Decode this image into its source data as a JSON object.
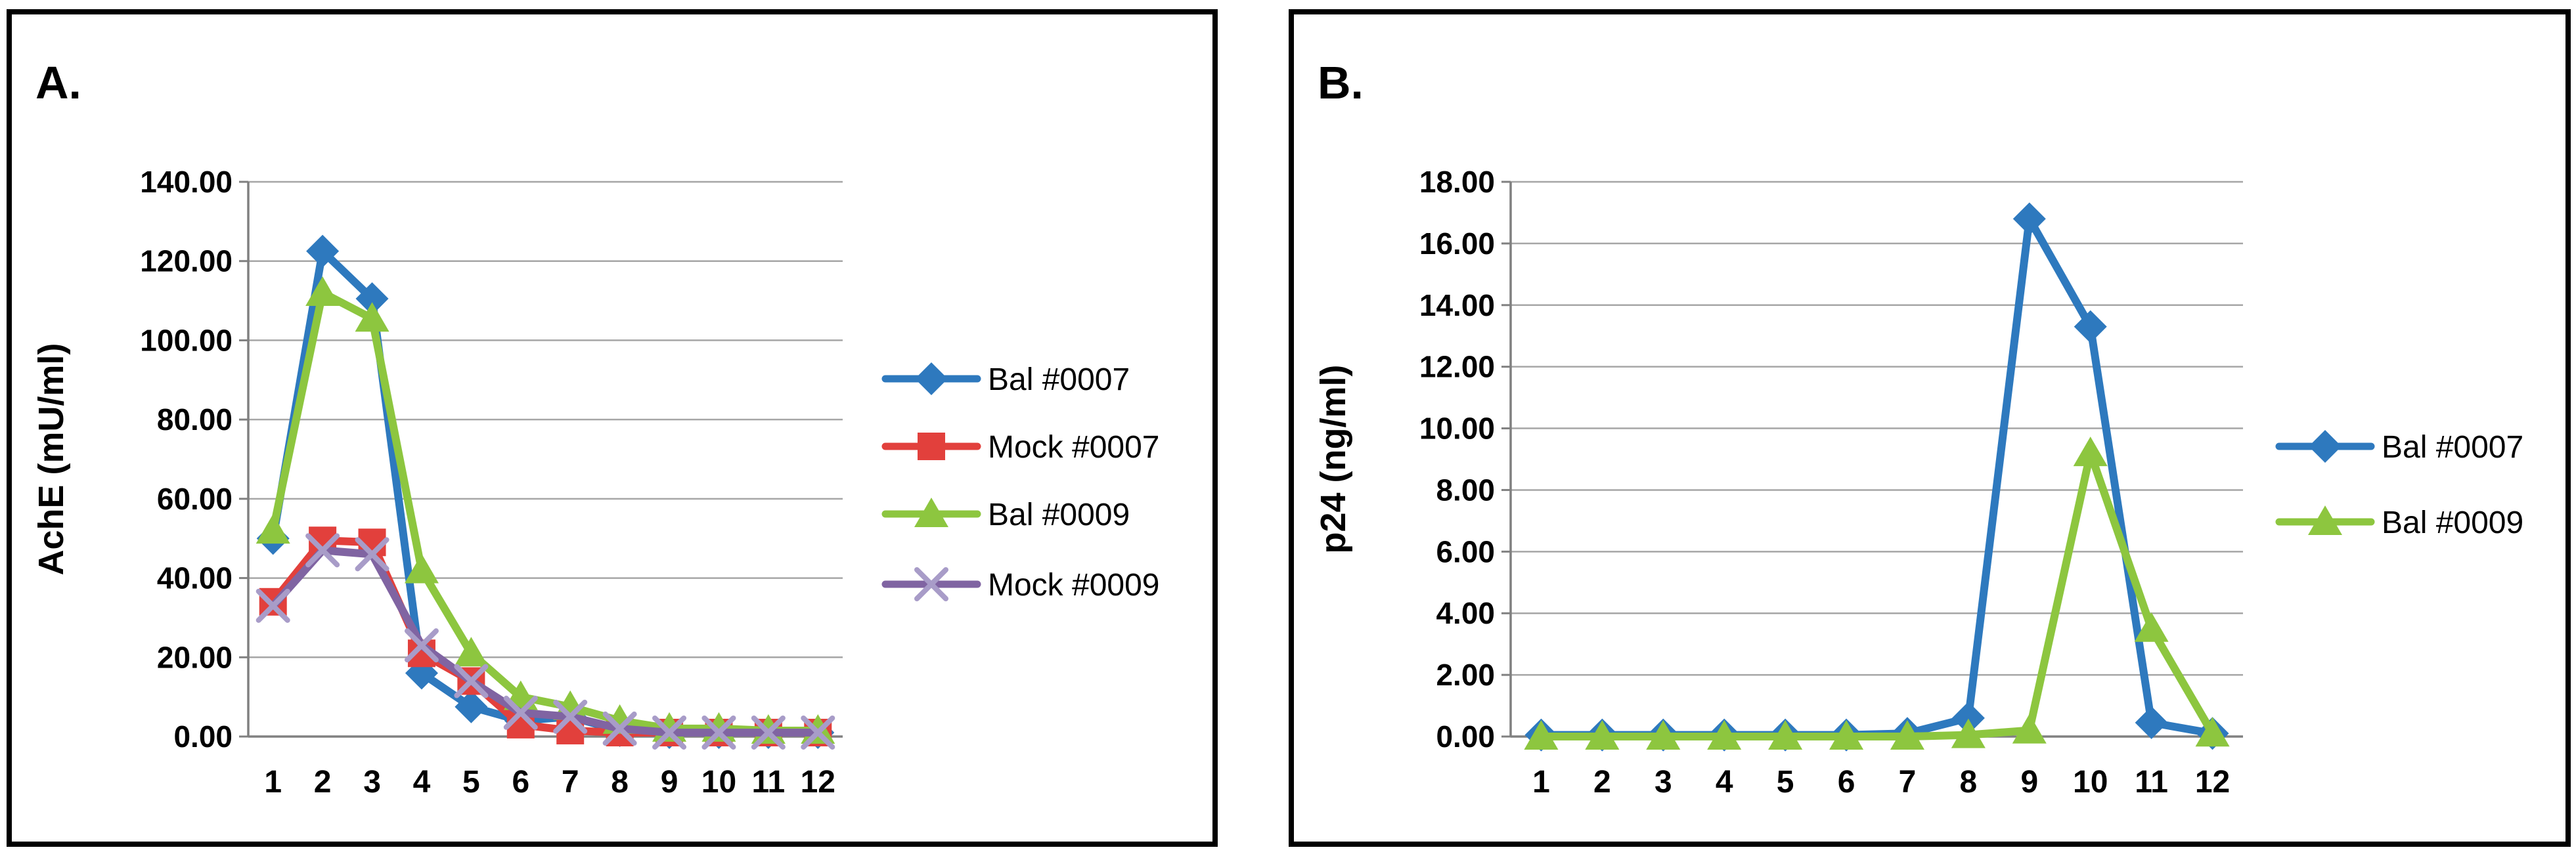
{
  "figure": {
    "background": "#FFFFFF",
    "panel_border_color": "#000000",
    "gridline_color": "#A6A6A6",
    "axis_line_color": "#808080",
    "text_color": "#000000",
    "x_marker_stroke_color": "#A89CC8"
  },
  "chart_data": [
    {
      "type": "line",
      "panel_label": "A.",
      "title": "",
      "xlabel": "",
      "ylabel": "AchE (mU/ml)",
      "ylim": [
        0,
        140
      ],
      "ystep": 20,
      "grid": "horizontal",
      "legend_position": "right",
      "y_ticklabels": [
        "0.00",
        "20.00",
        "40.00",
        "60.00",
        "80.00",
        "100.00",
        "120.00",
        "140.00"
      ],
      "categories": [
        "1",
        "2",
        "3",
        "4",
        "5",
        "6",
        "7",
        "8",
        "9",
        "10",
        "11",
        "12"
      ],
      "series": [
        {
          "name": "Bal #0007",
          "marker": "diamond",
          "color": "#2E79BE",
          "values": [
            50,
            122.5,
            110.5,
            16,
            7.5,
            4,
            5,
            1.5,
            1,
            1,
            1,
            1
          ]
        },
        {
          "name": "Mock #0007",
          "marker": "square",
          "color": "#E2403C",
          "values": [
            34,
            49.5,
            49,
            21,
            14,
            3,
            1.5,
            1,
            1,
            1,
            1,
            1
          ]
        },
        {
          "name": "Bal #0009",
          "marker": "triangle",
          "color": "#8DC63F",
          "values": [
            52,
            112,
            105.5,
            42,
            21,
            10,
            7.5,
            4,
            2,
            2,
            1.5,
            1.5
          ]
        },
        {
          "name": "Mock #0009",
          "marker": "x",
          "color": "#8064A2",
          "values": [
            33,
            47,
            46,
            23,
            14,
            6,
            5,
            2,
            1,
            1,
            1,
            1
          ]
        }
      ]
    },
    {
      "type": "line",
      "panel_label": "B.",
      "title": "",
      "xlabel": "",
      "ylabel": "p24 (ng/ml)",
      "ylim": [
        0,
        18
      ],
      "ystep": 2,
      "grid": "horizontal",
      "legend_position": "right",
      "y_ticklabels": [
        "0.00",
        "2.00",
        "4.00",
        "6.00",
        "8.00",
        "10.00",
        "12.00",
        "14.00",
        "16.00",
        "18.00"
      ],
      "categories": [
        "1",
        "2",
        "3",
        "4",
        "5",
        "6",
        "7",
        "8",
        "9",
        "10",
        "11",
        "12"
      ],
      "series": [
        {
          "name": "Bal #0007",
          "marker": "diamond",
          "color": "#2E79BE",
          "values": [
            0.05,
            0.05,
            0.05,
            0.05,
            0.05,
            0.05,
            0.1,
            0.6,
            16.8,
            13.3,
            0.45,
            0.1
          ]
        },
        {
          "name": "Bal #0009",
          "marker": "triangle",
          "color": "#8DC63F",
          "values": [
            0,
            0,
            0,
            0,
            0,
            0,
            0,
            0.05,
            0.2,
            9.2,
            3.5,
            0.1
          ]
        }
      ]
    }
  ]
}
